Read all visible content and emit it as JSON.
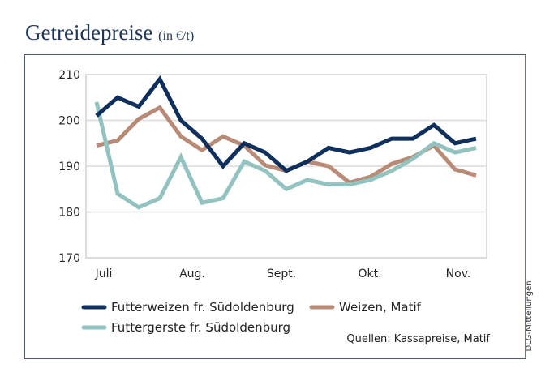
{
  "header": {
    "title": "Getreidepreise",
    "subtitle": "(in €/t)"
  },
  "credit": "DLG-Mitteilungen",
  "source": "Quellen: Kassapreise, Matif",
  "chart_data": {
    "type": "line",
    "title": "Getreidepreise (in €/t)",
    "xlabel": "",
    "ylabel": "",
    "ylim": [
      170,
      210
    ],
    "yticks": [
      170,
      180,
      190,
      200,
      210
    ],
    "grid": true,
    "x_tick_labels": [
      "Juli",
      "Aug.",
      "Sept.",
      "Okt.",
      "Nov."
    ],
    "x_points": 19,
    "legend_position": "bottom",
    "series": [
      {
        "name": "Futterweizen fr. Südoldenburg",
        "color": "#0f2f5c",
        "values": [
          201,
          205,
          203,
          209,
          200,
          196,
          190,
          195,
          193,
          189,
          191,
          194,
          193,
          194,
          196,
          196,
          199,
          195,
          196
        ]
      },
      {
        "name": "Weizen, Matif",
        "color": "#b98a76",
        "values": [
          194.5,
          195.6,
          200.3,
          202.8,
          196.5,
          193.5,
          196.5,
          194.5,
          190.2,
          189,
          191,
          190,
          186.4,
          187.7,
          190.5,
          192,
          194.5,
          189.3,
          188
        ]
      },
      {
        "name": "Futtergerste fr. Südoldenburg",
        "color": "#93c3c0",
        "values": [
          204,
          184,
          181,
          183,
          192,
          182,
          183,
          191,
          189,
          185,
          187,
          186,
          186,
          187,
          189,
          191.6,
          195,
          193,
          194
        ]
      }
    ]
  }
}
